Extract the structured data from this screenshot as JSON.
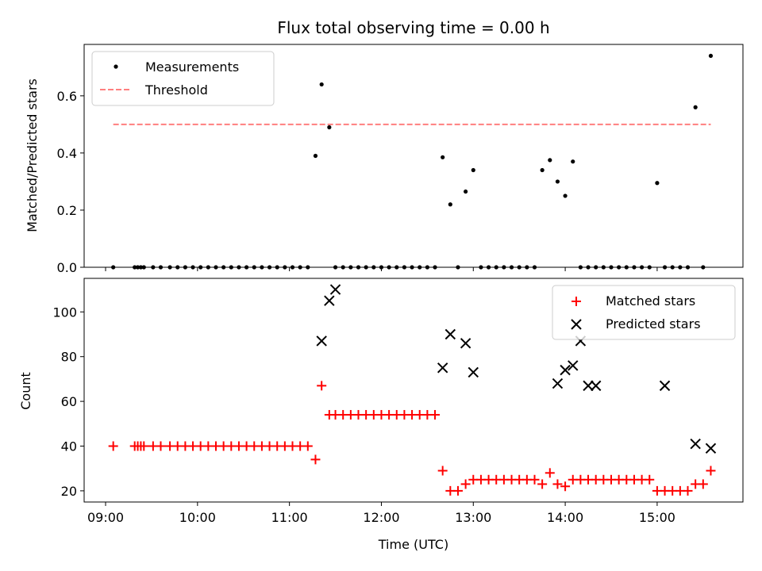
{
  "chart_data": [
    {
      "type": "scatter",
      "title": "Flux total observing time = 0.00 h",
      "xlabel": "",
      "ylabel": "Matched/Predicted stars",
      "xlim": [
        "08:46",
        "15:56"
      ],
      "ylim": [
        0,
        0.78
      ],
      "x_ticks": [
        "09:00",
        "10:00",
        "11:00",
        "12:00",
        "13:00",
        "14:00",
        "15:00"
      ],
      "y_ticks": [
        0.0,
        0.2,
        0.4,
        0.6
      ],
      "y_tick_labels": [
        "0.0",
        "0.2",
        "0.4",
        "0.6"
      ],
      "legend_position": "top-left",
      "colors": {
        "measurements": "#000000",
        "threshold": "#ff7f7f"
      },
      "series": [
        {
          "name": "Measurements",
          "style": "dot",
          "x": [
            "09:05",
            "09:19",
            "09:21",
            "09:23",
            "09:25",
            "09:31",
            "09:36",
            "09:42",
            "09:47",
            "09:52",
            "09:57",
            "10:02",
            "10:07",
            "10:12",
            "10:17",
            "10:22",
            "10:27",
            "10:32",
            "10:37",
            "10:42",
            "10:47",
            "10:52",
            "10:57",
            "11:02",
            "11:07",
            "11:12",
            "11:17",
            "11:21",
            "11:26",
            "11:30",
            "11:35",
            "11:40",
            "11:45",
            "11:50",
            "11:55",
            "12:00",
            "12:05",
            "12:10",
            "12:15",
            "12:20",
            "12:25",
            "12:30",
            "12:35",
            "12:40",
            "12:45",
            "12:50",
            "12:55",
            "13:00",
            "13:05",
            "13:10",
            "13:15",
            "13:20",
            "13:25",
            "13:30",
            "13:35",
            "13:40",
            "13:45",
            "13:50",
            "13:55",
            "14:00",
            "14:05",
            "14:10",
            "14:15",
            "14:20",
            "14:25",
            "14:30",
            "14:35",
            "14:40",
            "14:45",
            "14:50",
            "14:55",
            "15:00",
            "15:05",
            "15:10",
            "15:15",
            "15:20",
            "15:25",
            "15:30",
            "15:35"
          ],
          "y": [
            0,
            0,
            0,
            0,
            0,
            0,
            0,
            0,
            0,
            0,
            0,
            0,
            0,
            0,
            0,
            0,
            0,
            0,
            0,
            0,
            0,
            0,
            0,
            0,
            0,
            0,
            0.39,
            0.64,
            0.49,
            0,
            0,
            0,
            0,
            0,
            0,
            0,
            0,
            0,
            0,
            0,
            0,
            0,
            0,
            0.385,
            0.22,
            0,
            0.265,
            0.34,
            0,
            0,
            0,
            0,
            0,
            0,
            0,
            0,
            0.34,
            0.375,
            0.3,
            0.25,
            0.37,
            0,
            0,
            0,
            0,
            0,
            0,
            0,
            0,
            0,
            0,
            0.295,
            0,
            0,
            0,
            0,
            0.56,
            0,
            0.74
          ]
        },
        {
          "name": "Threshold",
          "style": "dashed-line",
          "x": [
            "09:05",
            "15:35"
          ],
          "y": [
            0.5,
            0.5
          ]
        }
      ]
    },
    {
      "type": "scatter",
      "title": "",
      "xlabel": "Time (UTC)",
      "ylabel": "Count",
      "xlim": [
        "08:46",
        "15:56"
      ],
      "ylim": [
        15,
        115
      ],
      "x_ticks": [
        "09:00",
        "10:00",
        "11:00",
        "12:00",
        "13:00",
        "14:00",
        "15:00"
      ],
      "y_ticks": [
        20,
        40,
        60,
        80,
        100
      ],
      "legend_position": "top-right",
      "colors": {
        "matched": "#ff0000",
        "predicted": "#000000"
      },
      "series": [
        {
          "name": "Matched stars",
          "style": "plus",
          "x": [
            "09:05",
            "09:19",
            "09:21",
            "09:23",
            "09:25",
            "09:31",
            "09:36",
            "09:42",
            "09:47",
            "09:52",
            "09:57",
            "10:02",
            "10:07",
            "10:12",
            "10:17",
            "10:22",
            "10:27",
            "10:32",
            "10:37",
            "10:42",
            "10:47",
            "10:52",
            "10:57",
            "11:02",
            "11:07",
            "11:12",
            "11:17",
            "11:21",
            "11:26",
            "11:30",
            "11:35",
            "11:40",
            "11:45",
            "11:50",
            "11:55",
            "12:00",
            "12:05",
            "12:10",
            "12:15",
            "12:20",
            "12:25",
            "12:30",
            "12:35",
            "12:40",
            "12:45",
            "12:50",
            "12:55",
            "13:00",
            "13:05",
            "13:10",
            "13:15",
            "13:20",
            "13:25",
            "13:30",
            "13:35",
            "13:40",
            "13:45",
            "13:50",
            "13:55",
            "14:00",
            "14:05",
            "14:10",
            "14:15",
            "14:20",
            "14:25",
            "14:30",
            "14:35",
            "14:40",
            "14:45",
            "14:50",
            "14:55",
            "15:00",
            "15:05",
            "15:10",
            "15:15",
            "15:20",
            "15:25",
            "15:30",
            "15:35"
          ],
          "y": [
            40,
            40,
            40,
            40,
            40,
            40,
            40,
            40,
            40,
            40,
            40,
            40,
            40,
            40,
            40,
            40,
            40,
            40,
            40,
            40,
            40,
            40,
            40,
            40,
            40,
            40,
            34,
            67,
            54,
            54,
            54,
            54,
            54,
            54,
            54,
            54,
            54,
            54,
            54,
            54,
            54,
            54,
            54,
            29,
            20,
            20,
            23,
            25,
            25,
            25,
            25,
            25,
            25,
            25,
            25,
            25,
            23,
            28,
            23,
            22,
            25,
            25,
            25,
            25,
            25,
            25,
            25,
            25,
            25,
            25,
            25,
            20,
            20,
            20,
            20,
            20,
            23,
            23,
            29
          ]
        },
        {
          "name": "Predicted stars",
          "style": "x",
          "x": [
            "11:21",
            "11:26",
            "11:30",
            "12:40",
            "12:45",
            "12:55",
            "13:00",
            "13:55",
            "14:00",
            "14:05",
            "14:10",
            "14:15",
            "14:20",
            "15:05",
            "15:25",
            "15:35"
          ],
          "y": [
            87,
            105,
            110,
            75,
            90,
            86,
            73,
            68,
            74,
            76,
            87,
            67,
            67,
            67,
            41,
            39
          ]
        }
      ]
    }
  ]
}
